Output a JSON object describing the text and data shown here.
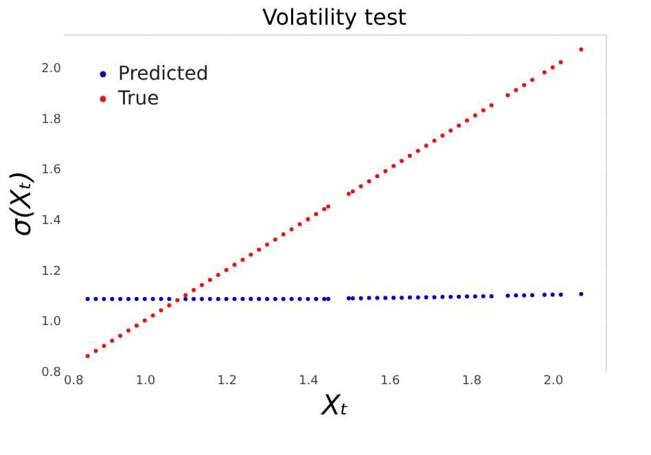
{
  "chart_data": {
    "type": "scatter",
    "title": "Volatility test",
    "xlabel": "Xₜ",
    "ylabel": "σ(Xₜ)",
    "x": [
      0.86,
      0.88,
      0.9,
      0.92,
      0.94,
      0.96,
      0.98,
      1.0,
      1.02,
      1.04,
      1.06,
      1.08,
      1.1,
      1.12,
      1.14,
      1.16,
      1.18,
      1.2,
      1.22,
      1.24,
      1.26,
      1.28,
      1.3,
      1.32,
      1.34,
      1.36,
      1.38,
      1.4,
      1.42,
      1.44,
      1.45,
      1.5,
      1.51,
      1.53,
      1.55,
      1.57,
      1.59,
      1.61,
      1.63,
      1.65,
      1.67,
      1.69,
      1.71,
      1.73,
      1.75,
      1.77,
      1.79,
      1.81,
      1.83,
      1.85,
      1.89,
      1.91,
      1.93,
      1.95,
      1.98,
      2.0,
      2.02,
      2.07
    ],
    "series": [
      {
        "name": "Predicted",
        "color": "#0000cc",
        "values": [
          1.085,
          1.085,
          1.085,
          1.085,
          1.085,
          1.085,
          1.085,
          1.085,
          1.085,
          1.085,
          1.085,
          null,
          1.085,
          1.085,
          1.085,
          1.085,
          1.085,
          1.085,
          1.085,
          1.085,
          1.085,
          1.085,
          1.085,
          1.085,
          1.085,
          1.085,
          1.085,
          1.085,
          1.085,
          1.085,
          1.085,
          1.088,
          1.088,
          1.088,
          1.089,
          1.089,
          1.089,
          1.09,
          1.09,
          1.091,
          1.091,
          1.092,
          1.092,
          1.093,
          1.093,
          1.094,
          1.095,
          1.095,
          1.096,
          1.096,
          1.098,
          1.099,
          1.099,
          1.1,
          1.101,
          1.102,
          1.102,
          1.105
        ]
      },
      {
        "name": "True",
        "color": "#ee1111",
        "values": [
          0.86,
          0.88,
          0.9,
          0.92,
          0.94,
          0.96,
          0.98,
          1.0,
          1.02,
          1.04,
          1.06,
          1.08,
          1.1,
          1.12,
          1.14,
          1.16,
          1.18,
          1.2,
          1.22,
          1.24,
          1.26,
          1.28,
          1.3,
          1.32,
          1.34,
          1.36,
          1.38,
          1.4,
          1.42,
          1.44,
          1.45,
          1.5,
          1.51,
          1.53,
          1.55,
          1.57,
          1.59,
          1.61,
          1.63,
          1.65,
          1.67,
          1.69,
          1.71,
          1.73,
          1.75,
          1.77,
          1.79,
          1.81,
          1.83,
          1.85,
          1.89,
          1.91,
          1.93,
          1.95,
          1.98,
          2.0,
          2.02,
          2.07
        ]
      }
    ],
    "xlim": [
      0.8,
      2.13
    ],
    "ylim": [
      0.8,
      2.13
    ],
    "xticks": [
      0.8,
      {
        "value": 1.0,
        "label": "1.0"
      },
      1.2,
      1.4,
      1.6,
      1.8,
      {
        "value": 2.0,
        "label": "2.0"
      }
    ],
    "yticks": [
      0.8,
      {
        "value": 1.0,
        "label": "1.0"
      },
      1.2,
      1.4,
      1.6,
      1.8,
      {
        "value": 2.0,
        "label": "2.0"
      }
    ],
    "grid": true,
    "legend": "top left",
    "marker": "circle"
  }
}
